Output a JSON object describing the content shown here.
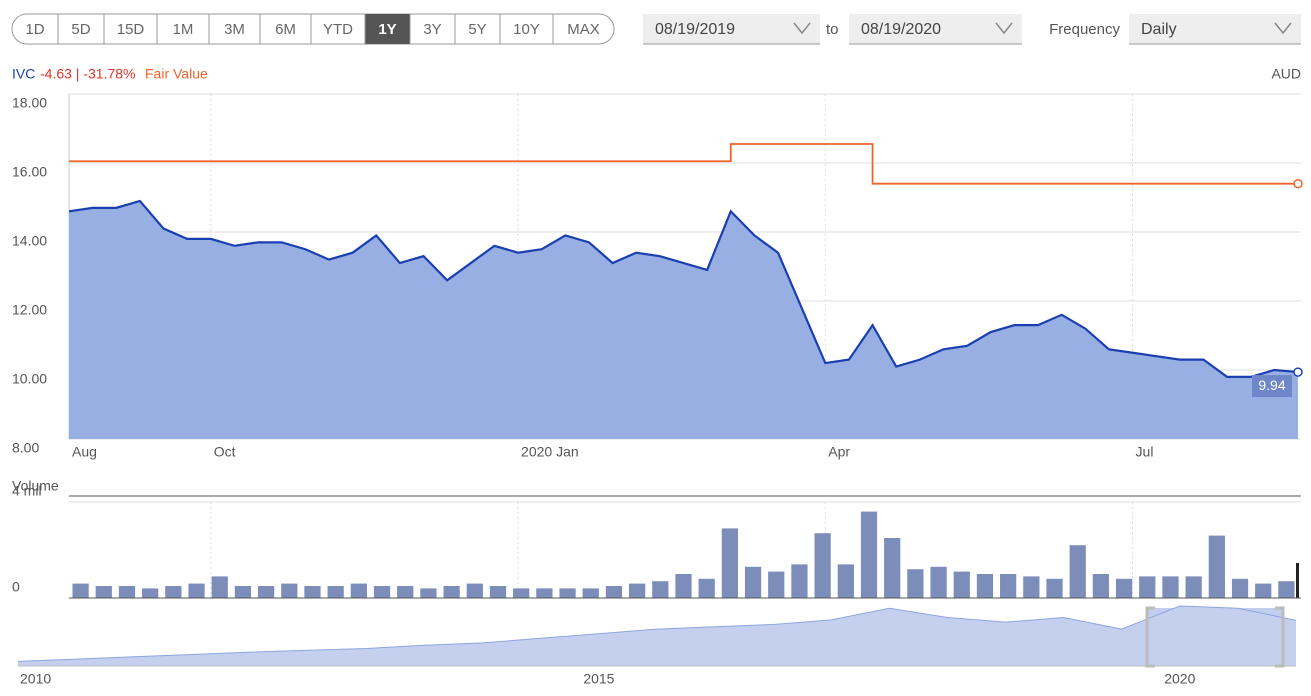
{
  "controls": {
    "ranges": [
      "1D",
      "5D",
      "15D",
      "1M",
      "3M",
      "6M",
      "YTD",
      "1Y",
      "3Y",
      "5Y",
      "10Y",
      "MAX"
    ],
    "active_range": "1Y",
    "from_date": "08/19/2019",
    "to_label": "to",
    "to_date": "08/19/2020",
    "frequency_label": "Frequency",
    "frequency": "Daily"
  },
  "chart_data": [
    {
      "type": "line",
      "change": "-4.63 | -31.78%",
      "currency": "AUD",
      "categories": [
        "Aug",
        null,
        null,
        null,
        null,
        null,
        "Oct",
        null,
        null,
        null,
        null,
        null,
        null,
        null,
        null,
        null,
        null,
        null,
        null,
        "2020 Jan",
        null,
        null,
        null,
        null,
        null,
        null,
        null,
        null,
        null,
        null,
        null,
        null,
        "Apr",
        null,
        null,
        null,
        null,
        null,
        null,
        null,
        null,
        null,
        null,
        null,
        null,
        "Jul",
        null,
        null,
        null,
        null,
        null,
        null,
        null
      ],
      "series": [
        {
          "name": "IVC",
          "color": "#1a3fb0",
          "fill": "#98afe3",
          "values": [
            14.6,
            14.7,
            14.7,
            14.9,
            14.1,
            13.8,
            13.8,
            13.6,
            13.7,
            13.7,
            13.5,
            13.2,
            13.4,
            13.9,
            13.1,
            13.3,
            12.6,
            13.1,
            13.6,
            13.4,
            13.5,
            13.9,
            13.7,
            13.1,
            13.4,
            13.3,
            13.1,
            12.9,
            14.6,
            13.9,
            13.4,
            11.8,
            10.2,
            10.3,
            11.3,
            10.1,
            10.3,
            10.6,
            10.7,
            11.1,
            11.3,
            11.3,
            11.6,
            11.2,
            10.6,
            10.5,
            10.4,
            10.3,
            10.3,
            9.8,
            9.8,
            10.0,
            9.94
          ]
        },
        {
          "name": "Fair Value",
          "color": "#f0642a",
          "step": true,
          "values": [
            16.05,
            16.05,
            16.05,
            16.05,
            16.05,
            16.05,
            16.05,
            16.05,
            16.05,
            16.05,
            16.05,
            16.05,
            16.05,
            16.05,
            16.05,
            16.05,
            16.05,
            16.05,
            16.05,
            16.05,
            16.05,
            16.05,
            16.05,
            16.05,
            16.05,
            16.05,
            16.05,
            16.05,
            16.55,
            16.55,
            16.55,
            16.55,
            16.55,
            16.55,
            15.4,
            15.4,
            15.4,
            15.4,
            15.4,
            15.4,
            15.4,
            15.4,
            15.4,
            15.4,
            15.4,
            15.4,
            15.4,
            15.4,
            15.4,
            15.4,
            15.4,
            15.4,
            15.4
          ]
        }
      ],
      "ylim": [
        8,
        18
      ],
      "yticks": [
        {
          "value": 8,
          "label": "8.00"
        },
        {
          "value": 10,
          "label": "10.00"
        },
        {
          "value": 12,
          "label": "12.00"
        },
        {
          "value": 14,
          "label": "14.00"
        },
        {
          "value": 16,
          "label": "16.00"
        },
        {
          "value": 18,
          "label": "18.00"
        }
      ],
      "grid": true,
      "xgrid": true
    },
    {
      "type": "bar",
      "title": "Volume",
      "color": "#7b8db8",
      "values": [
        0.6,
        0.5,
        0.5,
        0.4,
        0.5,
        0.6,
        0.9,
        0.5,
        0.5,
        0.6,
        0.5,
        0.5,
        0.6,
        0.5,
        0.5,
        0.4,
        0.5,
        0.6,
        0.5,
        0.4,
        0.4,
        0.4,
        0.4,
        0.5,
        0.6,
        0.7,
        1.0,
        0.8,
        2.9,
        1.3,
        1.1,
        1.4,
        2.7,
        1.4,
        3.6,
        2.5,
        1.2,
        1.3,
        1.1,
        1.0,
        1.0,
        0.9,
        0.8,
        2.2,
        1.0,
        0.8,
        0.9,
        0.9,
        0.9,
        2.6,
        0.8,
        0.6,
        0.7
      ],
      "ylim": [
        0,
        4
      ],
      "yticks": [
        0,
        {
          "value": 4,
          "label": "4 mil"
        }
      ]
    },
    {
      "type": "area",
      "color": "#c5d0ef",
      "categories": [
        "2010",
        null,
        null,
        null,
        null,
        null,
        null,
        null,
        null,
        null,
        "2015",
        null,
        null,
        null,
        null,
        null,
        null,
        null,
        null,
        null,
        "2020",
        null,
        null
      ],
      "values": [
        1.0,
        1.5,
        2.0,
        2.5,
        3.0,
        3.4,
        3.8,
        4.5,
        5.0,
        6.0,
        7.0,
        8.0,
        8.5,
        9.0,
        10.0,
        12.5,
        10.5,
        9.5,
        10.5,
        8.0,
        13.0,
        12.5,
        9.9
      ]
    }
  ]
}
